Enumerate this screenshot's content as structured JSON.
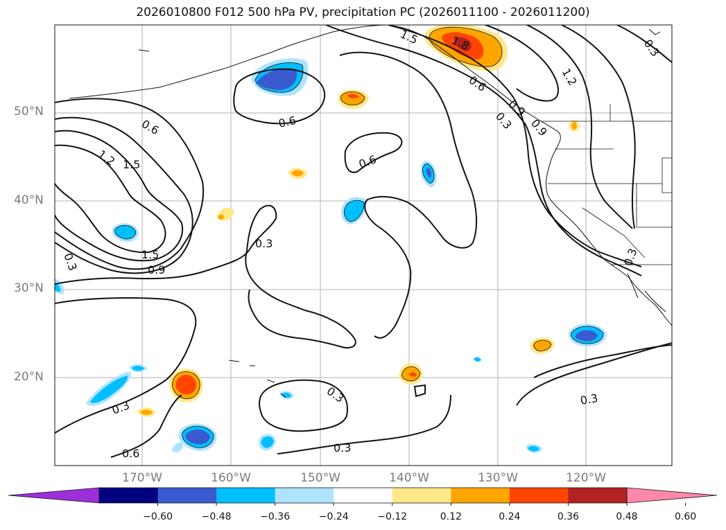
{
  "title": "2026010800 F012 500 hPa PV, precipitation PC (2026011100 - 2026011200)",
  "lat_labels": [
    "50°N",
    "40°N",
    "30°N",
    "20°N"
  ],
  "lon_labels": [
    "170°W",
    "160°W",
    "150°W",
    "140°W",
    "130°W",
    "120°W"
  ],
  "colorbar": {
    "ticks": [
      "−0.60",
      "−0.48",
      "−0.36",
      "−0.24",
      "−0.12",
      "0.12",
      "0.24",
      "0.36",
      "0.48",
      "0.60"
    ],
    "colors": [
      "#9b30d9",
      "#000080",
      "#3a5bd0",
      "#00bfff",
      "#aee3ff",
      "#ffffff",
      "#ffe88a",
      "#ffa500",
      "#ff4500",
      "#b22222",
      "#ff88aa"
    ]
  },
  "contour_labels": [
    "0.6",
    "0.6",
    "0.6",
    "1.2",
    "1.5",
    "1.5",
    "0.9",
    "0.3",
    "0.3",
    "0.3",
    "0.3",
    "0.3",
    "0.3",
    "0.3",
    "0.6",
    "1.5",
    "1.2",
    "0.3",
    "0.6",
    "0.9",
    "0.3",
    "0.9",
    "1.8"
  ]
}
